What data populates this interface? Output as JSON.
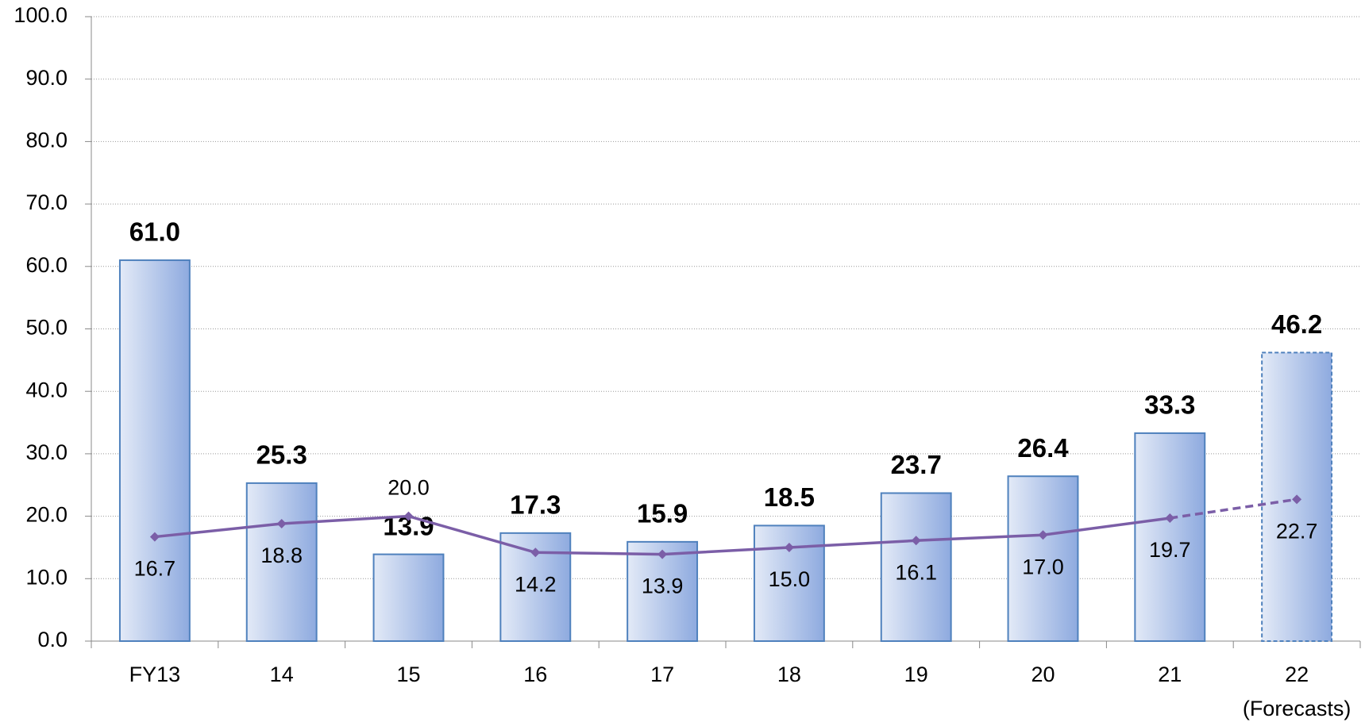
{
  "chart_data": {
    "type": "bar",
    "categories": [
      "FY13",
      "14",
      "15",
      "16",
      "17",
      "18",
      "19",
      "20",
      "21",
      "22"
    ],
    "category_note": "(Forecasts)",
    "ylim": [
      0,
      100
    ],
    "yticks": [
      {
        "value": 0,
        "label": "0.0"
      },
      {
        "value": 10,
        "label": "10.0"
      },
      {
        "value": 20,
        "label": "20.0"
      },
      {
        "value": 30,
        "label": "30.0"
      },
      {
        "value": 40,
        "label": "40.0"
      },
      {
        "value": 50,
        "label": "50.0"
      },
      {
        "value": 60,
        "label": "60.0"
      },
      {
        "value": 70,
        "label": "70.0"
      },
      {
        "value": 80,
        "label": "80.0"
      },
      {
        "value": 90,
        "label": "90.0"
      },
      {
        "value": 100,
        "label": "100.0"
      }
    ],
    "grid": true,
    "dashed_from": 9,
    "series": [
      {
        "type": "bar",
        "color": "#4f81bd",
        "values": [
          61.0,
          25.3,
          13.9,
          17.3,
          15.9,
          18.5,
          23.7,
          26.4,
          33.3,
          46.2
        ],
        "value_labels": [
          "61.0",
          "25.3",
          "13.9",
          "17.3",
          "15.9",
          "18.5",
          "23.7",
          "26.4",
          "33.3",
          "46.2"
        ]
      },
      {
        "type": "line",
        "color": "#7b5ea7",
        "values": [
          16.7,
          18.8,
          20.0,
          14.2,
          13.9,
          15.0,
          16.1,
          17.0,
          19.7,
          22.7
        ],
        "value_labels": [
          "16.7",
          "18.8",
          "20.0",
          "14.2",
          "13.9",
          "15.0",
          "16.1",
          "17.0",
          "19.7",
          "22.7"
        ]
      }
    ]
  }
}
